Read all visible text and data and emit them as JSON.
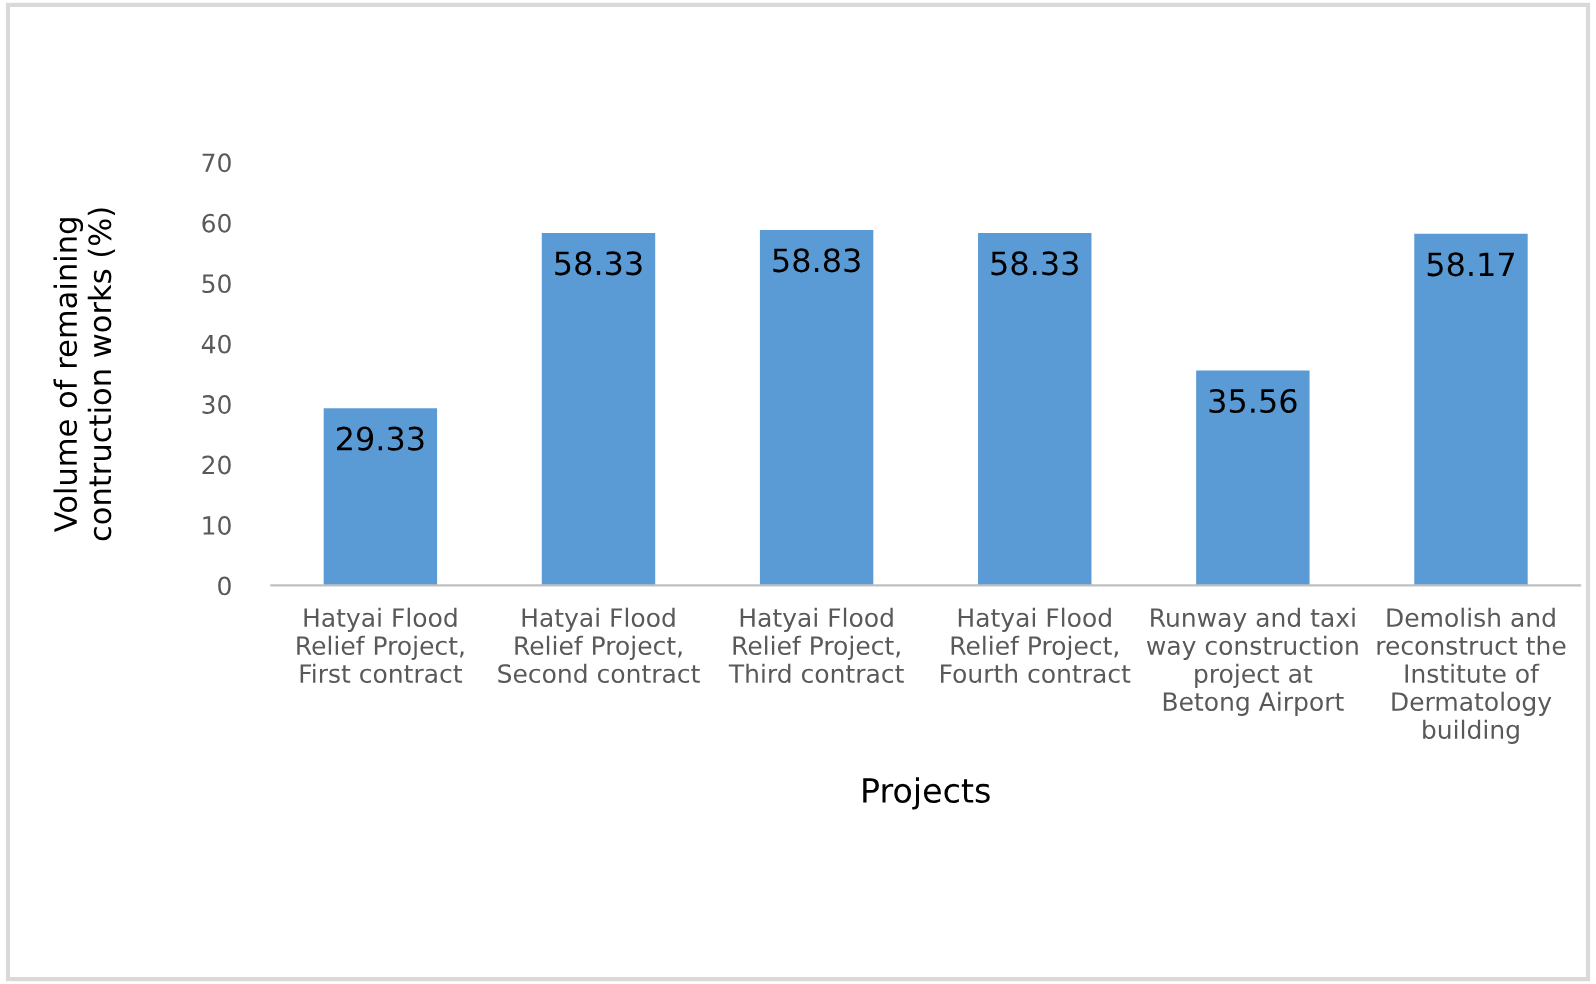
{
  "chart_data": {
    "type": "bar",
    "xlabel": "Projects",
    "ylabel": "Volume of remaining\ncontruction works (%)",
    "categories": [
      "Hatyai Flood\nRelief Project,\nFirst contract",
      "Hatyai Flood\nRelief Project,\nSecond contract",
      "Hatyai Flood\nRelief Project,\nThird contract",
      "Hatyai Flood\nRelief Project,\nFourth contract",
      "Runway and taxi\nway construction\nproject at\nBetong Airport",
      "Demolish and\nreconstruct the\nInstitute of\nDermatology\nbuilding"
    ],
    "values": [
      29.33,
      58.33,
      58.83,
      58.33,
      35.56,
      58.17
    ],
    "color": "#5b9bd5",
    "ylim": [
      0,
      70
    ],
    "yticks": [
      0,
      10,
      20,
      30,
      40,
      50,
      60,
      70
    ],
    "data_labels": true
  }
}
